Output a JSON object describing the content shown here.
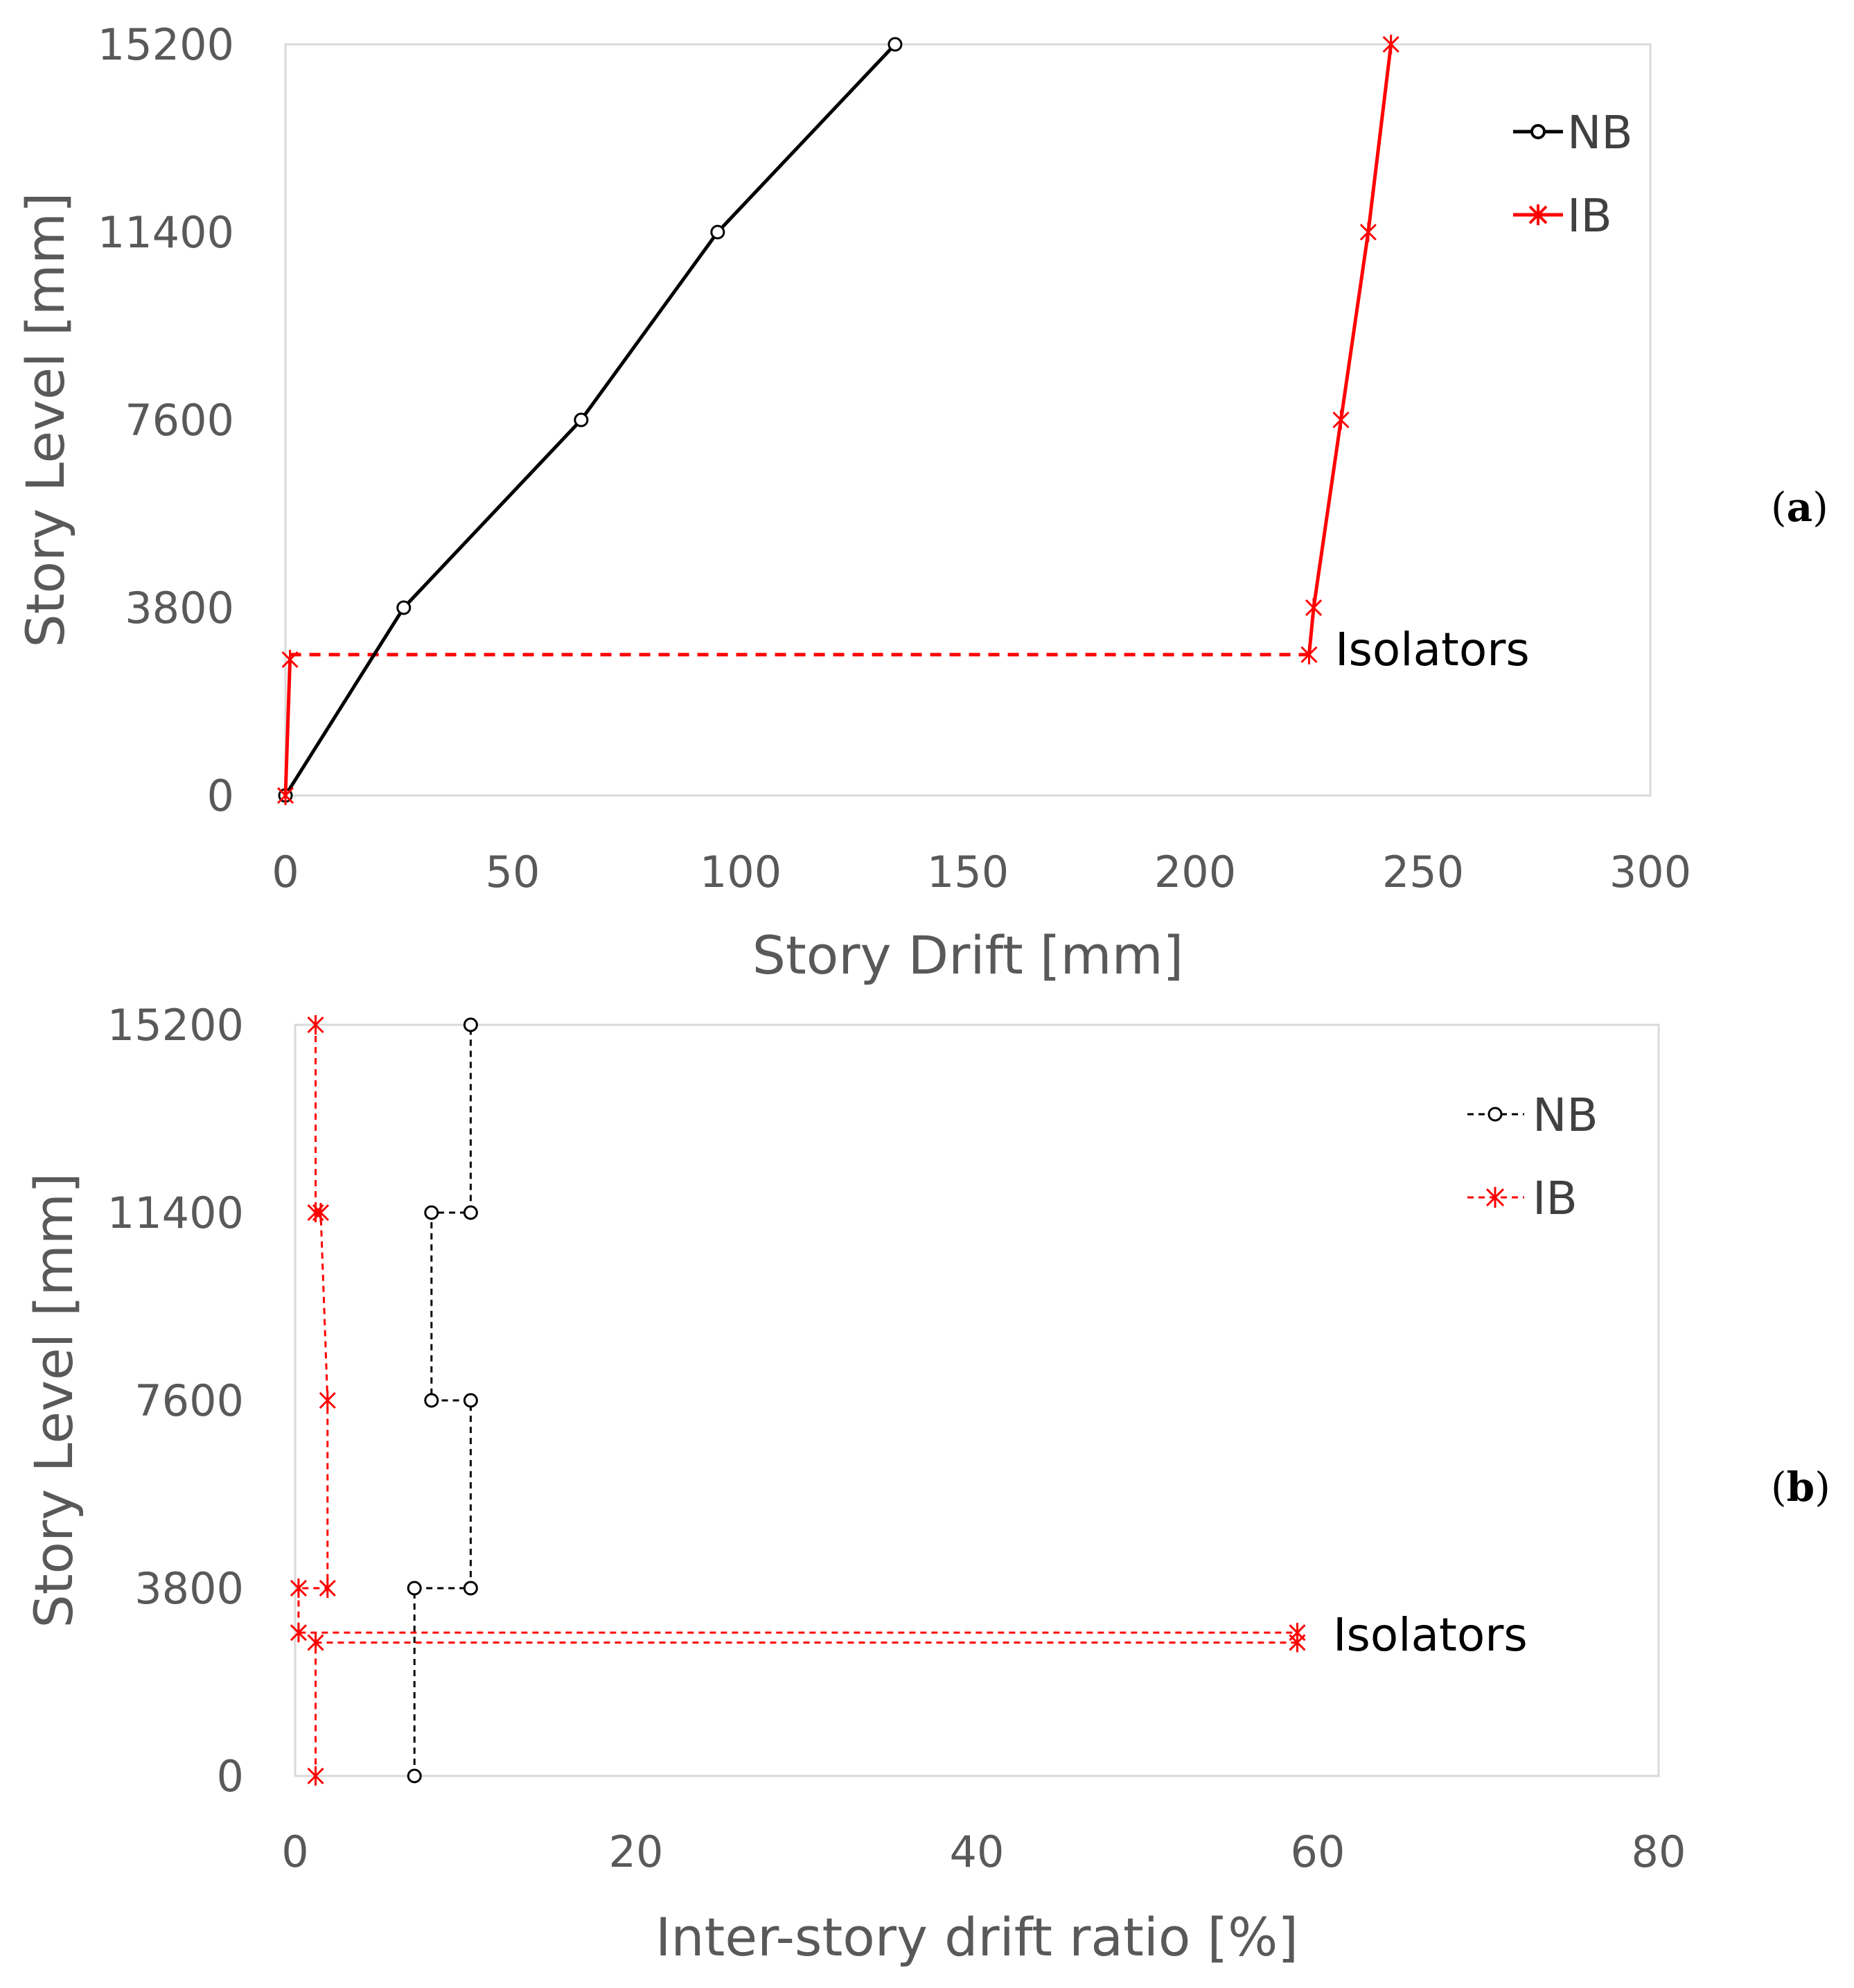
{
  "chart_data": [
    {
      "type": "line",
      "panel_label_open": "(",
      "panel_label_letter": "a",
      "panel_label_close": ")",
      "xlabel": "Story Drift  [mm]",
      "ylabel": "Story Level  [mm]",
      "xlim": [
        0,
        300
      ],
      "ylim": [
        0,
        15200
      ],
      "xticks": [
        "0",
        "50",
        "100",
        "150",
        "200",
        "250",
        "300"
      ],
      "yticks": [
        "0",
        "3800",
        "7600",
        "11400",
        "15200"
      ],
      "legend_position": "top-right",
      "colors": {
        "NB": "#000000",
        "IB": "#ff0000"
      },
      "series": [
        {
          "name": "NB",
          "marker": "circle",
          "dash": "solid",
          "points": [
            [
              0,
              0
            ],
            [
              26,
              3800
            ],
            [
              65,
              7600
            ],
            [
              95,
              11400
            ],
            [
              134,
              15200
            ]
          ]
        },
        {
          "name": "IB",
          "marker": "asterisk",
          "dash": "solid",
          "points": [
            [
              0,
              0
            ],
            [
              1,
              2750
            ]
          ]
        },
        {
          "name": "IB",
          "marker": "asterisk",
          "dash": "solid",
          "points": [
            [
              225,
              2850
            ],
            [
              226,
              3800
            ],
            [
              232,
              7600
            ],
            [
              238,
              11400
            ],
            [
              243,
              15200
            ]
          ]
        }
      ],
      "connectors": [
        {
          "color": "#ff0000",
          "dash": "dashed",
          "points": [
            [
              1,
              2850
            ],
            [
              225,
              2850
            ]
          ]
        }
      ],
      "annotations": [
        {
          "text": "Isolators",
          "at": [
            225,
            2850
          ]
        }
      ]
    },
    {
      "type": "line",
      "panel_label_open": "(",
      "panel_label_letter": "b",
      "panel_label_close": ")",
      "xlabel": "Inter-story drift ratio [%]",
      "ylabel": "Story Level  [mm]",
      "xlim": [
        0,
        80
      ],
      "ylim": [
        0,
        15200
      ],
      "xticks": [
        "0",
        "20",
        "40",
        "60",
        "80"
      ],
      "yticks": [
        "0",
        "3800",
        "7600",
        "11400",
        "15200"
      ],
      "legend_position": "top-right",
      "colors": {
        "NB": "#000000",
        "IB": "#ff0000"
      },
      "series": [
        {
          "name": "NB",
          "marker": "circle",
          "dash": "dashed",
          "points": [
            [
              7,
              0
            ],
            [
              7,
              3800
            ],
            [
              10.3,
              3800
            ],
            [
              10.3,
              7600
            ],
            [
              8,
              7600
            ],
            [
              8,
              11400
            ],
            [
              10.3,
              11400
            ],
            [
              10.3,
              15200
            ]
          ]
        },
        {
          "name": "IB",
          "marker": "asterisk",
          "dash": "dashed",
          "points": [
            [
              1.2,
              15200
            ],
            [
              1.2,
              11400
            ],
            [
              1.5,
              11400
            ],
            [
              1.9,
              7600
            ],
            [
              1.9,
              3800
            ],
            [
              0.2,
              3800
            ],
            [
              0.2,
              2900
            ],
            [
              58.8,
              2900
            ]
          ]
        },
        {
          "name": "IB",
          "marker": "asterisk",
          "dash": "dashed",
          "points": [
            [
              58.8,
              2700
            ],
            [
              1.2,
              2700
            ],
            [
              1.2,
              0
            ]
          ]
        }
      ],
      "connectors": [],
      "annotations": [
        {
          "text": "Isolators",
          "at": [
            58.8,
            2800
          ]
        }
      ]
    }
  ]
}
